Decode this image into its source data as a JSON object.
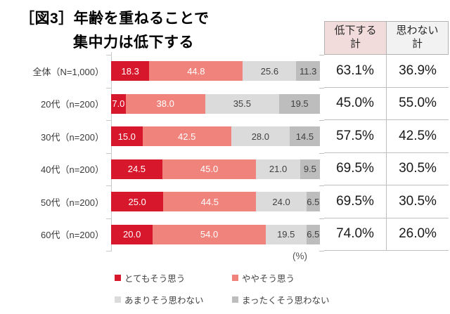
{
  "title": {
    "line1": "［図3］年齢を重ねることで",
    "line2": "集中力は低下する"
  },
  "axis": {
    "unit_label": "(%)"
  },
  "chart_data": {
    "type": "bar",
    "orientation": "horizontal",
    "stacked": true,
    "x_max": 100,
    "unit": "%",
    "title": "［図3］年齢を重ねることで集中力は低下する",
    "categories": [
      "全体（N=1,000）",
      "20代（n=200）",
      "30代（n=200）",
      "40代（n=200）",
      "50代（n=200）",
      "60代（n=200）"
    ],
    "series": [
      {
        "name": "とてもそう思う",
        "color": "#d7182c",
        "label_color": "#ffffff",
        "values": [
          18.3,
          7.0,
          15.0,
          24.5,
          25.0,
          20.0
        ]
      },
      {
        "name": "ややそう思う",
        "color": "#f0837b",
        "label_color": "#ffffff",
        "values": [
          44.8,
          38.0,
          42.5,
          45.0,
          44.5,
          54.0
        ]
      },
      {
        "name": "あまりそう思わない",
        "color": "#dbdbdb",
        "label_color": "#404040",
        "values": [
          25.6,
          35.5,
          28.0,
          21.0,
          24.0,
          19.5
        ]
      },
      {
        "name": "まったくそう思わない",
        "color": "#bdbdbd",
        "label_color": "#404040",
        "values": [
          11.3,
          19.5,
          14.5,
          9.5,
          6.5,
          6.5
        ]
      }
    ],
    "legend_position": "bottom"
  },
  "summary_table": {
    "headers": [
      {
        "label": "低下する\n計",
        "bg": "#f2dcdb"
      },
      {
        "label": "思わない\n計",
        "bg": "#f2f2f2"
      }
    ],
    "rows": [
      [
        "63.1%",
        "36.9%"
      ],
      [
        "45.0%",
        "55.0%"
      ],
      [
        "57.5%",
        "42.5%"
      ],
      [
        "69.5%",
        "30.5%"
      ],
      [
        "69.5%",
        "30.5%"
      ],
      [
        "74.0%",
        "26.0%"
      ]
    ]
  },
  "legend": {
    "items": [
      {
        "label": "とてもそう思う",
        "color": "#d7182c"
      },
      {
        "label": "ややそう思う",
        "color": "#f0837b"
      },
      {
        "label": "あまりそう思わない",
        "color": "#dbdbdb"
      },
      {
        "label": "まったくそう思わない",
        "color": "#bdbdbd"
      }
    ]
  }
}
